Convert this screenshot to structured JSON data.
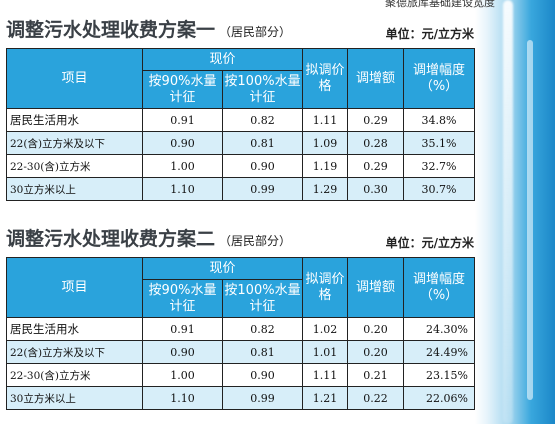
{
  "header_snippet": "聚德旅库基础建设宽度",
  "tables": [
    {
      "title": "调整污水处理收费方案一",
      "subtitle": "（居民部分）",
      "unit": "单位：元/立方米",
      "headers": {
        "item": "项目",
        "price": "现价",
        "price_90": "按90%水量计征",
        "price_100": "按100%水量计征",
        "proposed": "拟调价格",
        "increase": "调增额",
        "rate": "调增幅度（%）"
      },
      "rows": [
        {
          "item": "居民生活用水",
          "p90": "0.91",
          "p100": "0.82",
          "proposed": "1.11",
          "increase": "0.29",
          "rate": "34.8%"
        },
        {
          "item": "22(含)立方米及以下",
          "p90": "0.90",
          "p100": "0.81",
          "proposed": "1.09",
          "increase": "0.28",
          "rate": "35.1%"
        },
        {
          "item": "22-30(含)立方米",
          "p90": "1.00",
          "p100": "0.90",
          "proposed": "1.19",
          "increase": "0.29",
          "rate": "32.7%"
        },
        {
          "item": "30立方米以上",
          "p90": "1.10",
          "p100": "0.99",
          "proposed": "1.29",
          "increase": "0.30",
          "rate": "30.7%"
        }
      ]
    },
    {
      "title": "调整污水处理收费方案二",
      "subtitle": "（居民部分）",
      "unit": "单位：元/立方米",
      "headers": {
        "item": "项目",
        "price": "现价",
        "price_90": "按90%水量计征",
        "price_100": "按100%水量计征",
        "proposed": "拟调价格",
        "increase": "调增额",
        "rate": "调增幅度（%）"
      },
      "rows": [
        {
          "item": "居民生活用水",
          "p90": "0.91",
          "p100": "0.82",
          "proposed": "1.02",
          "increase": "0.20",
          "rate": "24.30%"
        },
        {
          "item": "22(含)立方米及以下",
          "p90": "0.90",
          "p100": "0.81",
          "proposed": "1.01",
          "increase": "0.20",
          "rate": "24.49%"
        },
        {
          "item": "22-30(含)立方米",
          "p90": "1.00",
          "p100": "0.90",
          "proposed": "1.11",
          "increase": "0.21",
          "rate": "23.15%"
        },
        {
          "item": "30立方米以上",
          "p90": "1.10",
          "p100": "0.99",
          "proposed": "1.21",
          "increase": "0.22",
          "rate": "22.06%"
        }
      ]
    }
  ]
}
